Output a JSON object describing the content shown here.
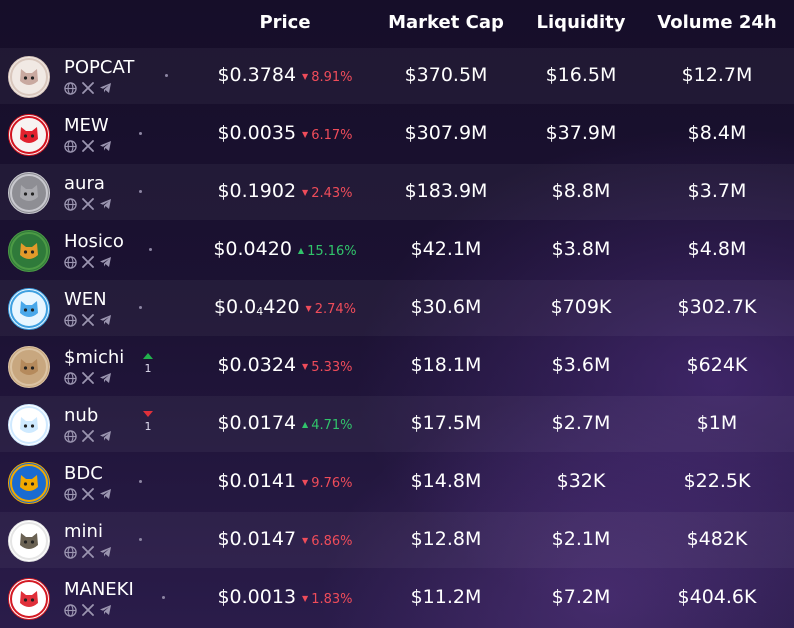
{
  "headers": {
    "price": "Price",
    "market_cap": "Market Cap",
    "liquidity": "Liquidity",
    "volume": "Volume 24h"
  },
  "colors": {
    "negative": "#ef4c5a",
    "positive": "#31c46b",
    "trend_up": "#22b14c",
    "trend_down": "#e0303a"
  },
  "tokens": [
    {
      "name": "POPCAT",
      "price_main": "$0.3784",
      "price_sub": "",
      "price_tail": "",
      "change": "8.91%",
      "direction": "down",
      "market_cap": "$370.5M",
      "liquidity": "$16.5M",
      "volume": "$12.7M",
      "rank_trend": "",
      "rank_delta": ""
    },
    {
      "name": "MEW",
      "price_main": "$0.0035",
      "price_sub": "",
      "price_tail": "",
      "change": "6.17%",
      "direction": "down",
      "market_cap": "$307.9M",
      "liquidity": "$37.9M",
      "volume": "$8.4M",
      "rank_trend": "",
      "rank_delta": ""
    },
    {
      "name": "aura",
      "price_main": "$0.1902",
      "price_sub": "",
      "price_tail": "",
      "change": "2.43%",
      "direction": "down",
      "market_cap": "$183.9M",
      "liquidity": "$8.8M",
      "volume": "$3.7M",
      "rank_trend": "",
      "rank_delta": ""
    },
    {
      "name": "Hosico",
      "price_main": "$0.0420",
      "price_sub": "",
      "price_tail": "",
      "change": "15.16%",
      "direction": "up",
      "market_cap": "$42.1M",
      "liquidity": "$3.8M",
      "volume": "$4.8M",
      "rank_trend": "",
      "rank_delta": ""
    },
    {
      "name": "WEN",
      "price_main": "$0.0",
      "price_sub": "4",
      "price_tail": "420",
      "change": "2.74%",
      "direction": "down",
      "market_cap": "$30.6M",
      "liquidity": "$709K",
      "volume": "$302.7K",
      "rank_trend": "",
      "rank_delta": ""
    },
    {
      "name": "$michi",
      "price_main": "$0.0324",
      "price_sub": "",
      "price_tail": "",
      "change": "5.33%",
      "direction": "down",
      "market_cap": "$18.1M",
      "liquidity": "$3.6M",
      "volume": "$624K",
      "rank_trend": "up",
      "rank_delta": "1"
    },
    {
      "name": "nub",
      "price_main": "$0.0174",
      "price_sub": "",
      "price_tail": "",
      "change": "4.71%",
      "direction": "up",
      "market_cap": "$17.5M",
      "liquidity": "$2.7M",
      "volume": "$1M",
      "rank_trend": "down",
      "rank_delta": "1"
    },
    {
      "name": "BDC",
      "price_main": "$0.0141",
      "price_sub": "",
      "price_tail": "",
      "change": "9.76%",
      "direction": "down",
      "market_cap": "$14.8M",
      "liquidity": "$32K",
      "volume": "$22.5K",
      "rank_trend": "",
      "rank_delta": ""
    },
    {
      "name": "mini",
      "price_main": "$0.0147",
      "price_sub": "",
      "price_tail": "",
      "change": "6.86%",
      "direction": "down",
      "market_cap": "$12.8M",
      "liquidity": "$2.1M",
      "volume": "$482K",
      "rank_trend": "",
      "rank_delta": ""
    },
    {
      "name": "MANEKI",
      "price_main": "$0.0013",
      "price_sub": "",
      "price_tail": "",
      "change": "1.83%",
      "direction": "down",
      "market_cap": "$11.2M",
      "liquidity": "$7.2M",
      "volume": "$404.6K",
      "rank_trend": "",
      "rank_delta": ""
    }
  ]
}
